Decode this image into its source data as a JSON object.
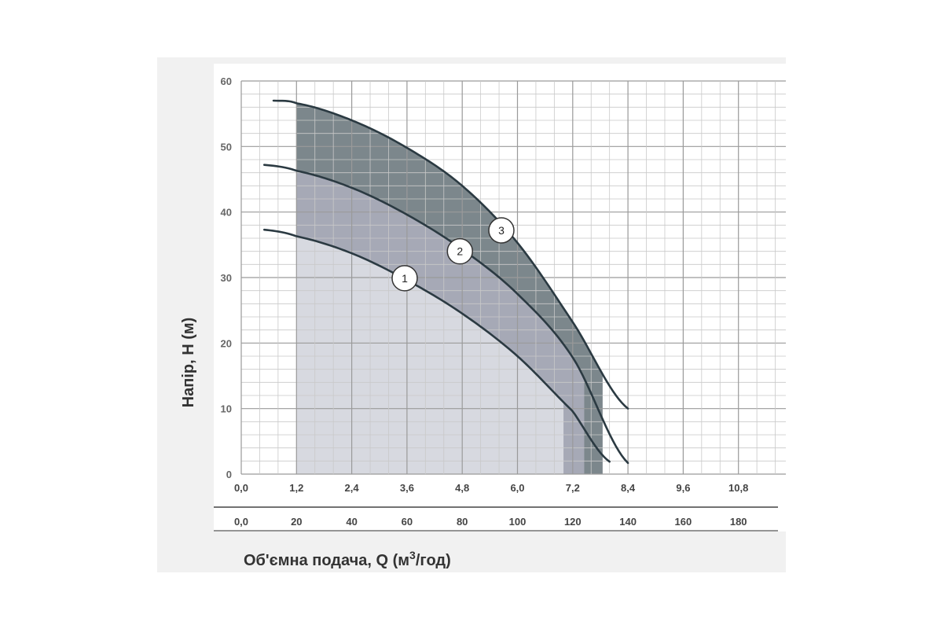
{
  "chart_data": {
    "type": "line",
    "ylabel": "Напір, H (м)",
    "xlabel_prefix": "Об'ємна подача, Q (м",
    "xlabel_sup": "3",
    "xlabel_suffix": "/год)",
    "ylim": [
      0,
      60
    ],
    "xlim_q": [
      0,
      12.0
    ],
    "xlim_l": [
      0,
      200
    ],
    "grid": true,
    "y_ticks": [
      {
        "v": 0,
        "label": "0"
      },
      {
        "v": 10,
        "label": "10"
      },
      {
        "v": 20,
        "label": "20"
      },
      {
        "v": 30,
        "label": "30"
      },
      {
        "v": 40,
        "label": "40"
      },
      {
        "v": 50,
        "label": "50"
      },
      {
        "v": 60,
        "label": "60"
      }
    ],
    "x_ticks_q": [
      {
        "v": 0,
        "label": "0,0"
      },
      {
        "v": 1.2,
        "label": "1,2"
      },
      {
        "v": 2.4,
        "label": "2,4"
      },
      {
        "v": 3.6,
        "label": "3,6"
      },
      {
        "v": 4.8,
        "label": "4,8"
      },
      {
        "v": 6.0,
        "label": "6,0"
      },
      {
        "v": 7.2,
        "label": "7,2"
      },
      {
        "v": 8.4,
        "label": "8,4"
      },
      {
        "v": 9.6,
        "label": "9,6"
      },
      {
        "v": 10.8,
        "label": "10,8"
      }
    ],
    "x_ticks_l": [
      {
        "v": 0,
        "label": "0,0"
      },
      {
        "v": 20,
        "label": "20"
      },
      {
        "v": 40,
        "label": "40"
      },
      {
        "v": 60,
        "label": "60"
      },
      {
        "v": 80,
        "label": "80"
      },
      {
        "v": 100,
        "label": "100"
      },
      {
        "v": 120,
        "label": "120"
      },
      {
        "v": 140,
        "label": "140"
      },
      {
        "v": 160,
        "label": "160"
      },
      {
        "v": 180,
        "label": "180"
      }
    ],
    "series": [
      {
        "name": "1",
        "color": "#2b3a42",
        "points": [
          [
            0.5,
            37.3
          ],
          [
            1.2,
            36.3
          ],
          [
            2.4,
            33.7
          ],
          [
            3.6,
            29.6
          ],
          [
            4.8,
            24.5
          ],
          [
            6.0,
            18.0
          ],
          [
            7.2,
            9.6
          ],
          [
            8.0,
            1.9
          ]
        ],
        "label_at": [
          3.55,
          29.9
        ],
        "fill": {
          "x0": 1.2,
          "x1": 7.0,
          "color": "#d7d9e0"
        }
      },
      {
        "name": "2",
        "color": "#2b3a42",
        "points": [
          [
            0.5,
            47.2
          ],
          [
            1.2,
            46.3
          ],
          [
            2.4,
            43.7
          ],
          [
            3.6,
            39.6
          ],
          [
            4.8,
            34.3
          ],
          [
            6.0,
            27.5
          ],
          [
            7.2,
            17.8
          ],
          [
            8.4,
            1.7
          ]
        ],
        "label_at": [
          4.75,
          34.0
        ],
        "fill": {
          "x0": 7.0,
          "x1": 7.45,
          "color": "#a6a9b6"
        }
      },
      {
        "name": "3",
        "color": "#2b3a42",
        "points": [
          [
            0.7,
            57.0
          ],
          [
            1.2,
            56.6
          ],
          [
            2.4,
            54.0
          ],
          [
            3.6,
            49.8
          ],
          [
            4.8,
            44.0
          ],
          [
            6.0,
            35.3
          ],
          [
            7.2,
            23.2
          ],
          [
            8.4,
            10.0
          ]
        ],
        "label_at": [
          5.65,
          37.2
        ],
        "fill": {
          "x0": 7.45,
          "x1": 7.85,
          "color": "#7c878c"
        }
      }
    ]
  }
}
